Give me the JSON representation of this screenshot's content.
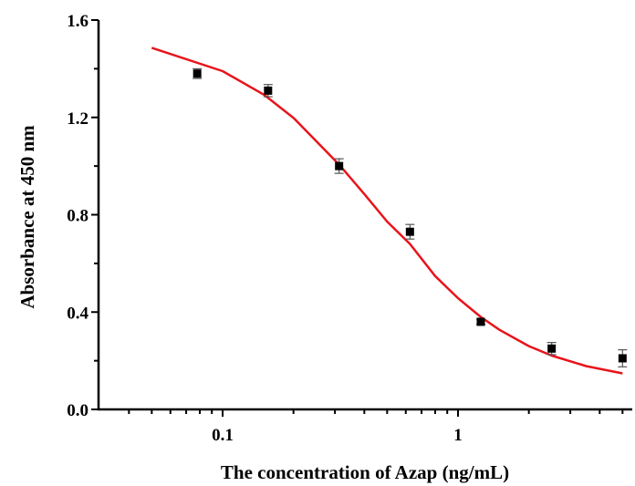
{
  "chart_data": {
    "type": "scatter",
    "xlabel": "The concentration of Azap (ng/mL)",
    "ylabel": "Absorbance at 450 nm",
    "x_scale": "log",
    "xlim": [
      0.03,
      5.5
    ],
    "ylim": [
      0.0,
      1.6
    ],
    "x_ticks": [
      {
        "value": 0.1,
        "label": "0.1"
      },
      {
        "value": 1,
        "label": "1"
      }
    ],
    "x_minor_ticks": [
      0.04,
      0.05,
      0.06,
      0.07,
      0.08,
      0.09,
      0.2,
      0.3,
      0.4,
      0.5,
      0.6,
      0.7,
      0.8,
      0.9,
      2,
      3,
      4,
      5
    ],
    "y_ticks": [
      {
        "value": 0.0,
        "label": "0.0"
      },
      {
        "value": 0.4,
        "label": "0.4"
      },
      {
        "value": 0.8,
        "label": "0.8"
      },
      {
        "value": 1.2,
        "label": "1.2"
      },
      {
        "value": 1.6,
        "label": "1.6"
      }
    ],
    "y_minor_ticks": [
      0.2,
      0.6,
      1.0,
      1.4
    ],
    "grid": false,
    "points": {
      "x": [
        0.078,
        0.156,
        0.3125,
        0.625,
        1.25,
        2.5,
        5
      ],
      "y": [
        1.38,
        1.31,
        1.0,
        0.73,
        0.36,
        0.25,
        0.21
      ],
      "error": [
        0.02,
        0.025,
        0.03,
        0.03,
        0.01,
        0.025,
        0.035
      ],
      "color": "#000000",
      "marker": "square"
    },
    "fit_curve": {
      "x": [
        0.05,
        0.1,
        0.15,
        0.2,
        0.3125,
        0.4,
        0.5,
        0.625,
        0.8,
        1,
        1.25,
        1.5,
        2,
        2.5,
        3.5,
        5
      ],
      "y": [
        1.486,
        1.39,
        1.293,
        1.198,
        1.006,
        0.885,
        0.772,
        0.68,
        0.548,
        0.457,
        0.38,
        0.327,
        0.26,
        0.221,
        0.178,
        0.148
      ],
      "color": "#e8141b"
    }
  }
}
